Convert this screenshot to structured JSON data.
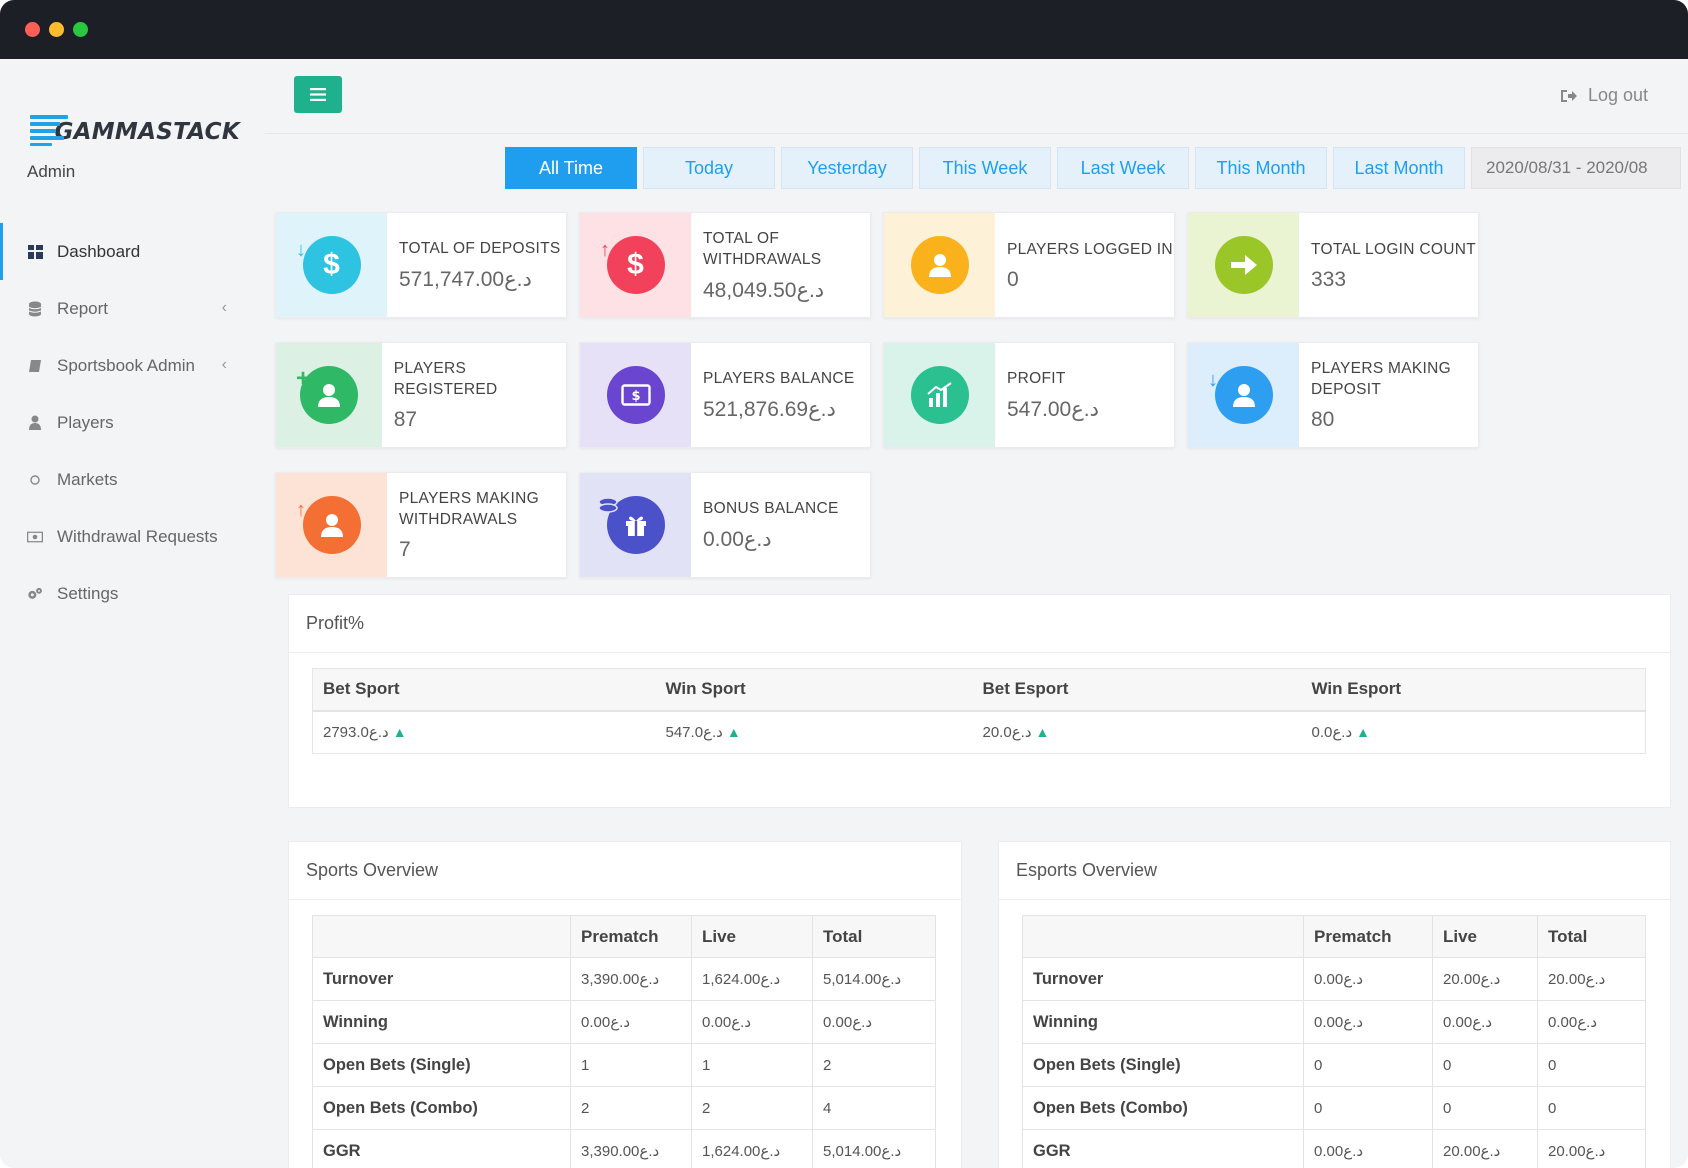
{
  "window": {
    "controls": [
      "close",
      "minimize",
      "maximize"
    ]
  },
  "brand": {
    "name": "GAMMASTACK",
    "role": "Admin"
  },
  "sidebar": {
    "items": [
      {
        "label": "Dashboard",
        "icon": "dashboard-icon",
        "active": true
      },
      {
        "label": "Report",
        "icon": "database-icon",
        "chevron": "‹"
      },
      {
        "label": "Sportsbook Admin",
        "icon": "book-icon",
        "chevron": "‹"
      },
      {
        "label": "Players",
        "icon": "user-icon"
      },
      {
        "label": "Markets",
        "icon": "circle-icon"
      },
      {
        "label": "Withdrawal Requests",
        "icon": "money-icon"
      },
      {
        "label": "Settings",
        "icon": "gears-icon"
      }
    ]
  },
  "header": {
    "logout_label": "Log out"
  },
  "filters": {
    "buttons": [
      "All Time",
      "Today",
      "Yesterday",
      "This Week",
      "Last Week",
      "This Month",
      "Last Month"
    ],
    "active": "All Time",
    "date_range": "2020/08/31 - 2020/08"
  },
  "cards": [
    {
      "label": "TOTAL OF DEPOSITS",
      "value": "571,747.00د.ع"
    },
    {
      "label": "TOTAL OF WITHDRAWALS",
      "value": "48,049.50د.ع"
    },
    {
      "label": "PLAYERS LOGGED IN",
      "value": "0"
    },
    {
      "label": "TOTAL LOGIN COUNT",
      "value": "333"
    },
    {
      "label": "PLAYERS REGISTERED",
      "value": "87"
    },
    {
      "label": "PLAYERS BALANCE",
      "value": "521,876.69د.ع"
    },
    {
      "label": "PROFIT",
      "value": "547.00د.ع"
    },
    {
      "label": "PLAYERS MAKING DEPOSIT",
      "value": "80"
    },
    {
      "label": "PLAYERS MAKING WITHDRAWALS",
      "value": "7"
    },
    {
      "label": "BONUS BALANCE",
      "value": "0.00د.ع"
    }
  ],
  "colors": {
    "accent": "#1f9ef0",
    "menu_button": "#1fb08e",
    "up_arrow": "#1fb08e"
  },
  "profit": {
    "title": "Profit%",
    "headers": [
      "Bet Sport",
      "Win Sport",
      "Bet Esport",
      "Win Esport"
    ],
    "values": [
      "2793.0د.ع",
      "547.0د.ع",
      "20.0د.ع",
      "0.0د.ع"
    ],
    "trend_symbol": "▲"
  },
  "sports_overview": {
    "title": "Sports Overview",
    "headers": [
      "",
      "Prematch",
      "Live",
      "Total"
    ],
    "rows": [
      [
        "Turnover",
        "3,390.00د.ع",
        "1,624.00د.ع",
        "5,014.00د.ع"
      ],
      [
        "Winning",
        "0.00د.ع",
        "0.00د.ع",
        "0.00د.ع"
      ],
      [
        "Open Bets (Single)",
        "1",
        "1",
        "2"
      ],
      [
        "Open Bets (Combo)",
        "2",
        "2",
        "4"
      ],
      [
        "GGR",
        "3,390.00د.ع",
        "1,624.00د.ع",
        "5,014.00د.ع"
      ]
    ]
  },
  "esports_overview": {
    "title": "Esports Overview",
    "headers": [
      "",
      "Prematch",
      "Live",
      "Total"
    ],
    "rows": [
      [
        "Turnover",
        "0.00د.ع",
        "20.00د.ع",
        "20.00د.ع"
      ],
      [
        "Winning",
        "0.00د.ع",
        "0.00د.ع",
        "0.00د.ع"
      ],
      [
        "Open Bets (Single)",
        "0",
        "0",
        "0"
      ],
      [
        "Open Bets (Combo)",
        "0",
        "0",
        "0"
      ],
      [
        "GGR",
        "0.00د.ع",
        "20.00د.ع",
        "20.00د.ع"
      ]
    ]
  }
}
